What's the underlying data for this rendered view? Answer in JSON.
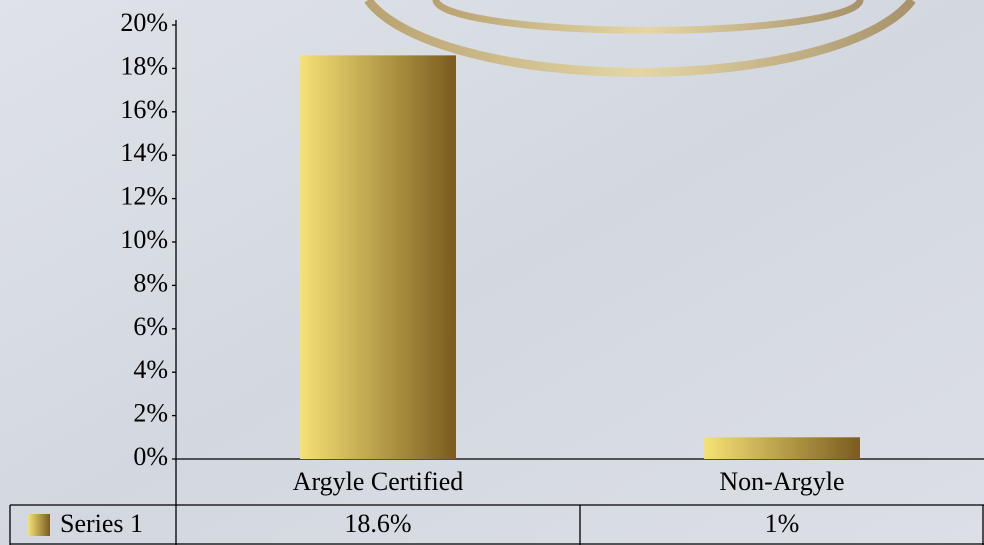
{
  "chart_data": {
    "type": "bar",
    "categories": [
      "Argyle Certified",
      "Non-Argyle"
    ],
    "series": [
      {
        "name": "Series 1",
        "color": "#7b5b1f",
        "values": [
          18.6,
          1
        ],
        "value_labels": [
          "18.6%",
          "1%"
        ]
      }
    ],
    "ylim": [
      0,
      20
    ],
    "yticks": [
      {
        "value": 0,
        "label": "0%"
      },
      {
        "value": 2,
        "label": "2%"
      },
      {
        "value": 4,
        "label": "4%"
      },
      {
        "value": 6,
        "label": "6%"
      },
      {
        "value": 8,
        "label": "8%"
      },
      {
        "value": 10,
        "label": "10%"
      },
      {
        "value": 12,
        "label": "12%"
      },
      {
        "value": 14,
        "label": "14%"
      },
      {
        "value": 16,
        "label": "16%"
      },
      {
        "value": 18,
        "label": "18%"
      },
      {
        "value": 20,
        "label": "20%"
      }
    ],
    "grid": false
  }
}
